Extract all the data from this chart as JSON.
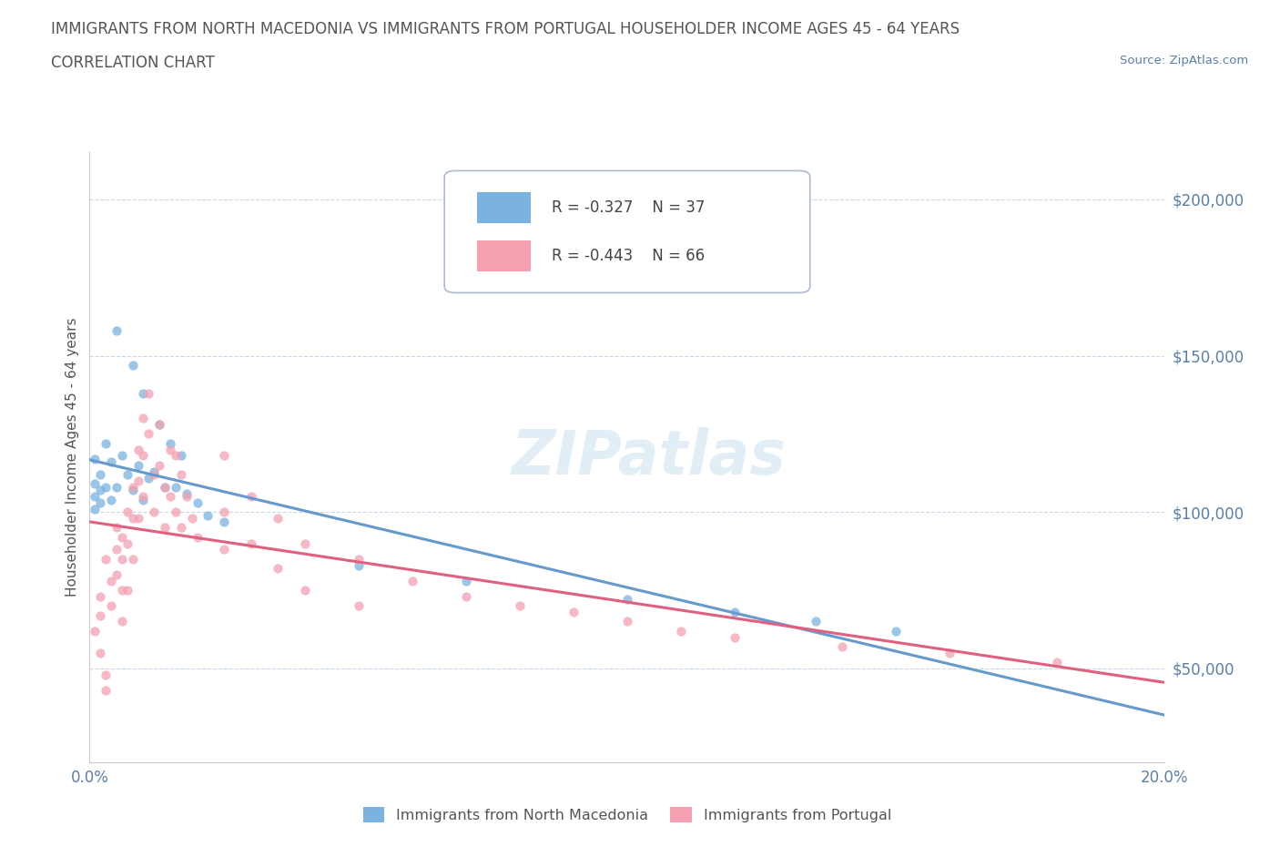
{
  "title_line1": "IMMIGRANTS FROM NORTH MACEDONIA VS IMMIGRANTS FROM PORTUGAL HOUSEHOLDER INCOME AGES 45 - 64 YEARS",
  "title_line2": "CORRELATION CHART",
  "source_text": "Source: ZipAtlas.com",
  "ylabel": "Householder Income Ages 45 - 64 years",
  "xlim": [
    0.0,
    0.2
  ],
  "ylim": [
    20000,
    215000
  ],
  "yticks": [
    50000,
    100000,
    150000,
    200000
  ],
  "ytick_labels": [
    "$50,000",
    "$100,000",
    "$150,000",
    "$200,000"
  ],
  "xticks": [
    0.0,
    0.025,
    0.05,
    0.075,
    0.1,
    0.125,
    0.15,
    0.175,
    0.2
  ],
  "xtick_labels": [
    "0.0%",
    "",
    "",
    "",
    "",
    "",
    "",
    "",
    "20.0%"
  ],
  "grid_color": "#c8d8e8",
  "background_color": "#ffffff",
  "text_color": "#5a7fa8",
  "title_color": "#555555",
  "watermark": "ZIPatlas",
  "legend_R1": "-0.327",
  "legend_N1": "37",
  "legend_R2": "-0.443",
  "legend_N2": "66",
  "color_macedonia": "#7ab3e0",
  "color_portugal": "#f4a0b0",
  "trendline_color_macedonia": "#6699cc",
  "trendline_color_portugal": "#e06080",
  "scatter_macedonia": [
    [
      0.005,
      158000
    ],
    [
      0.008,
      147000
    ],
    [
      0.01,
      138000
    ],
    [
      0.013,
      128000
    ],
    [
      0.015,
      122000
    ],
    [
      0.017,
      118000
    ],
    [
      0.009,
      115000
    ],
    [
      0.012,
      113000
    ],
    [
      0.011,
      111000
    ],
    [
      0.014,
      108000
    ],
    [
      0.016,
      108000
    ],
    [
      0.018,
      106000
    ],
    [
      0.007,
      112000
    ],
    [
      0.02,
      103000
    ],
    [
      0.022,
      99000
    ],
    [
      0.006,
      118000
    ],
    [
      0.008,
      107000
    ],
    [
      0.01,
      104000
    ],
    [
      0.003,
      122000
    ],
    [
      0.004,
      116000
    ],
    [
      0.005,
      108000
    ],
    [
      0.003,
      108000
    ],
    [
      0.004,
      104000
    ],
    [
      0.002,
      112000
    ],
    [
      0.002,
      107000
    ],
    [
      0.002,
      103000
    ],
    [
      0.001,
      117000
    ],
    [
      0.001,
      109000
    ],
    [
      0.001,
      105000
    ],
    [
      0.001,
      101000
    ],
    [
      0.025,
      97000
    ],
    [
      0.05,
      83000
    ],
    [
      0.07,
      78000
    ],
    [
      0.1,
      72000
    ],
    [
      0.12,
      68000
    ],
    [
      0.135,
      65000
    ],
    [
      0.15,
      62000
    ]
  ],
  "scatter_portugal": [
    [
      0.001,
      62000
    ],
    [
      0.002,
      55000
    ],
    [
      0.003,
      48000
    ],
    [
      0.003,
      43000
    ],
    [
      0.002,
      73000
    ],
    [
      0.002,
      67000
    ],
    [
      0.003,
      85000
    ],
    [
      0.004,
      78000
    ],
    [
      0.004,
      70000
    ],
    [
      0.005,
      95000
    ],
    [
      0.005,
      88000
    ],
    [
      0.005,
      80000
    ],
    [
      0.006,
      92000
    ],
    [
      0.006,
      85000
    ],
    [
      0.006,
      75000
    ],
    [
      0.006,
      65000
    ],
    [
      0.007,
      100000
    ],
    [
      0.007,
      90000
    ],
    [
      0.007,
      75000
    ],
    [
      0.008,
      108000
    ],
    [
      0.008,
      98000
    ],
    [
      0.008,
      85000
    ],
    [
      0.009,
      120000
    ],
    [
      0.009,
      110000
    ],
    [
      0.009,
      98000
    ],
    [
      0.01,
      130000
    ],
    [
      0.01,
      118000
    ],
    [
      0.01,
      105000
    ],
    [
      0.011,
      138000
    ],
    [
      0.011,
      125000
    ],
    [
      0.012,
      112000
    ],
    [
      0.012,
      100000
    ],
    [
      0.013,
      128000
    ],
    [
      0.013,
      115000
    ],
    [
      0.014,
      108000
    ],
    [
      0.014,
      95000
    ],
    [
      0.015,
      120000
    ],
    [
      0.015,
      105000
    ],
    [
      0.016,
      118000
    ],
    [
      0.016,
      100000
    ],
    [
      0.017,
      112000
    ],
    [
      0.017,
      95000
    ],
    [
      0.018,
      105000
    ],
    [
      0.019,
      98000
    ],
    [
      0.02,
      92000
    ],
    [
      0.025,
      118000
    ],
    [
      0.025,
      100000
    ],
    [
      0.025,
      88000
    ],
    [
      0.03,
      105000
    ],
    [
      0.03,
      90000
    ],
    [
      0.035,
      98000
    ],
    [
      0.035,
      82000
    ],
    [
      0.04,
      90000
    ],
    [
      0.04,
      75000
    ],
    [
      0.05,
      85000
    ],
    [
      0.05,
      70000
    ],
    [
      0.06,
      78000
    ],
    [
      0.07,
      73000
    ],
    [
      0.08,
      70000
    ],
    [
      0.09,
      68000
    ],
    [
      0.1,
      65000
    ],
    [
      0.11,
      62000
    ],
    [
      0.12,
      60000
    ],
    [
      0.14,
      57000
    ],
    [
      0.16,
      55000
    ],
    [
      0.18,
      52000
    ]
  ]
}
